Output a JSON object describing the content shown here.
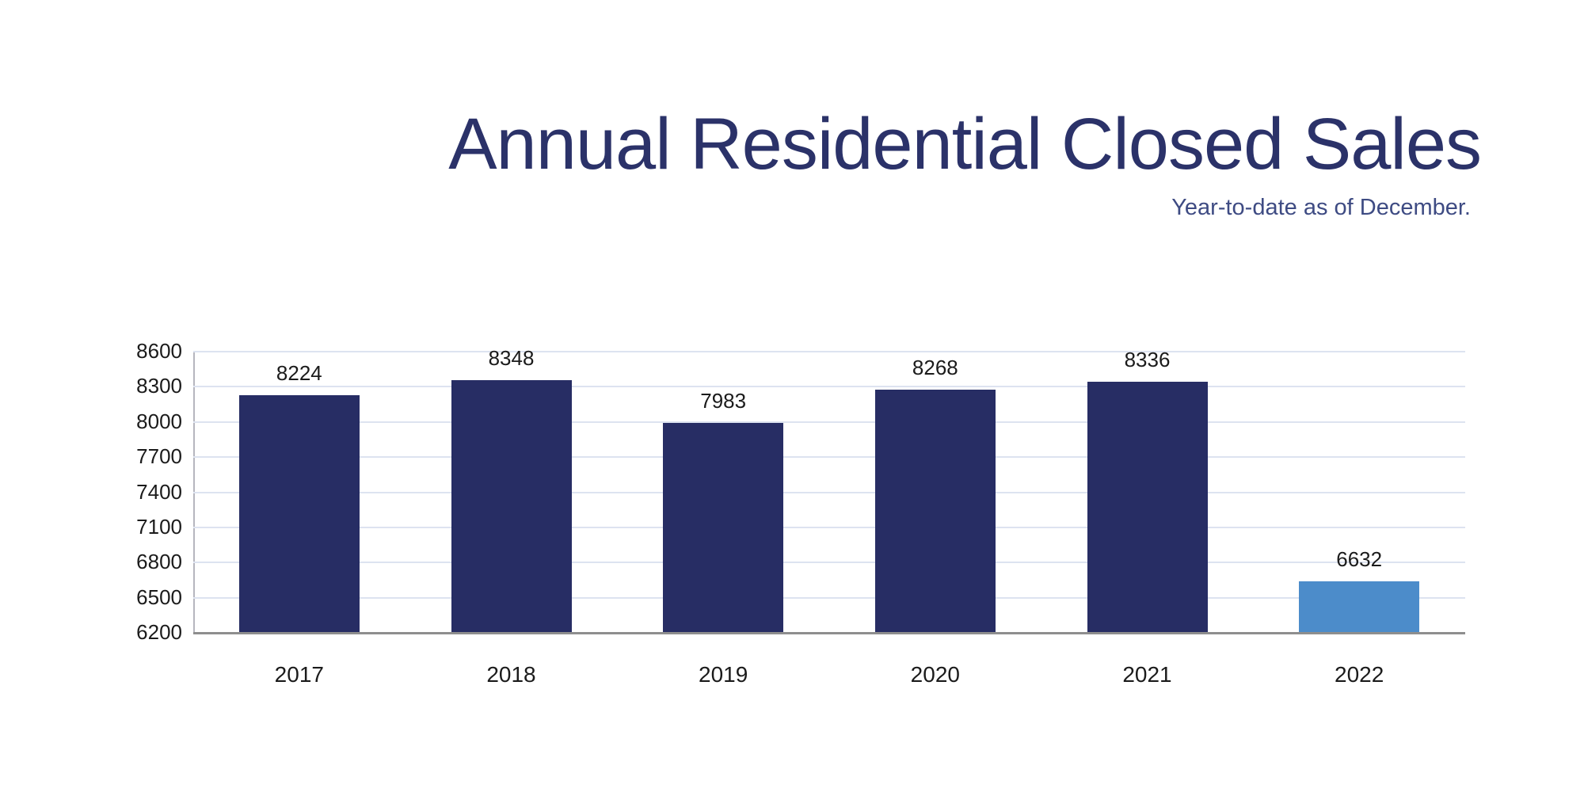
{
  "title": "Annual Residential Closed Sales",
  "subtitle": "Year-to-date as of December.",
  "colors": {
    "title": "#2b3269",
    "subtitle": "#3e4b83",
    "bar_default": "#272d64",
    "bar_highlight": "#4c8cca",
    "gridline": "#dde3f0",
    "axis_line": "#b6b6be",
    "baseline": "#8e8e8e",
    "label": "#1b1b1b"
  },
  "chart_data": {
    "type": "bar",
    "title": "Annual Residential Closed Sales",
    "subtitle": "Year-to-date as of December.",
    "categories": [
      "2017",
      "2018",
      "2019",
      "2020",
      "2021",
      "2022"
    ],
    "values": [
      8224,
      8348,
      7983,
      8268,
      8336,
      6632
    ],
    "highlight_index": 5,
    "value_labels": true,
    "xlabel": "",
    "ylabel": "",
    "ylim": [
      6200,
      8600
    ],
    "yticks": [
      6200,
      6500,
      6800,
      7100,
      7400,
      7700,
      8000,
      8300,
      8600
    ],
    "grid": true,
    "legend": "none"
  }
}
